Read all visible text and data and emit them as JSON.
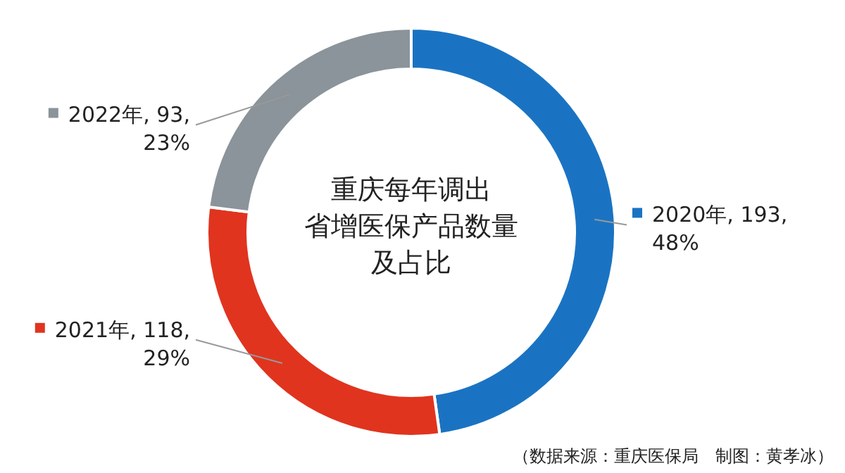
{
  "chart_data": {
    "type": "donut",
    "title": "重庆每年调出省增医保产品数量及占比",
    "categories": [
      "2020年",
      "2021年",
      "2022年"
    ],
    "values": [
      193,
      118,
      93
    ],
    "value_labels": [
      "193, 48%",
      "118, 29%",
      "93, 23%"
    ],
    "legend": "left",
    "colors": [
      "#1a73c2",
      "#e0341f",
      "#8a949a"
    ],
    "annotations": [
      "（数据来源：重庆医保局　制图：黄孝冰）"
    ]
  }
}
